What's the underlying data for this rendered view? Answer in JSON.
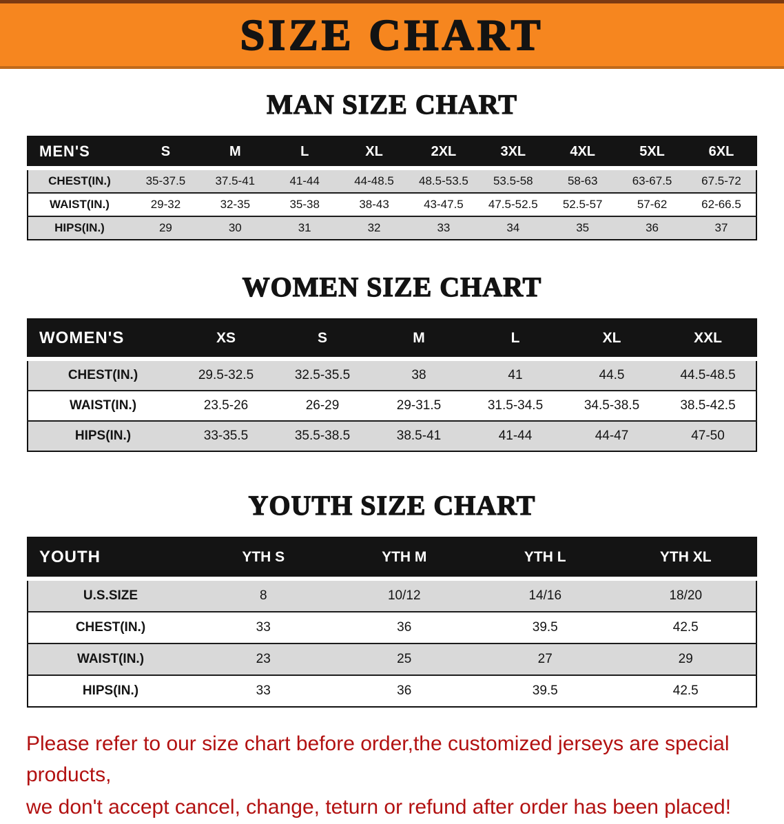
{
  "banner": {
    "title": "SIZE CHART"
  },
  "tables": [
    {
      "name": "men",
      "heading": "MAN SIZE CHART",
      "corner_label": "MEN'S",
      "columns": [
        "S",
        "M",
        "L",
        "XL",
        "2XL",
        "3XL",
        "4XL",
        "5XL",
        "6XL"
      ],
      "rows": [
        {
          "label": "CHEST(IN.)",
          "shaded": true,
          "values": [
            "35-37.5",
            "37.5-41",
            "41-44",
            "44-48.5",
            "48.5-53.5",
            "53.5-58",
            "58-63",
            "63-67.5",
            "67.5-72"
          ]
        },
        {
          "label": "WAIST(IN.)",
          "shaded": false,
          "values": [
            "29-32",
            "32-35",
            "35-38",
            "38-43",
            "43-47.5",
            "47.5-52.5",
            "52.5-57",
            "57-62",
            "62-66.5"
          ]
        },
        {
          "label": "HIPS(IN.)",
          "shaded": true,
          "values": [
            "29",
            "30",
            "31",
            "32",
            "33",
            "34",
            "35",
            "36",
            "37"
          ]
        }
      ]
    },
    {
      "name": "women",
      "heading": "WOMEN SIZE CHART",
      "corner_label": "WOMEN'S",
      "columns": [
        "XS",
        "S",
        "M",
        "L",
        "XL",
        "XXL"
      ],
      "rows": [
        {
          "label": "CHEST(IN.)",
          "shaded": true,
          "values": [
            "29.5-32.5",
            "32.5-35.5",
            "38",
            "41",
            "44.5",
            "44.5-48.5"
          ]
        },
        {
          "label": "WAIST(IN.)",
          "shaded": false,
          "values": [
            "23.5-26",
            "26-29",
            "29-31.5",
            "31.5-34.5",
            "34.5-38.5",
            "38.5-42.5"
          ]
        },
        {
          "label": "HIPS(IN.)",
          "shaded": true,
          "values": [
            "33-35.5",
            "35.5-38.5",
            "38.5-41",
            "41-44",
            "44-47",
            "47-50"
          ]
        }
      ]
    },
    {
      "name": "youth",
      "heading": "YOUTH SIZE CHART",
      "corner_label": "YOUTH",
      "columns": [
        "YTH S",
        "YTH M",
        "YTH L",
        "YTH XL"
      ],
      "rows": [
        {
          "label": "U.S.SIZE",
          "shaded": true,
          "values": [
            "8",
            "10/12",
            "14/16",
            "18/20"
          ]
        },
        {
          "label": "CHEST(IN.)",
          "shaded": false,
          "values": [
            "33",
            "36",
            "39.5",
            "42.5"
          ]
        },
        {
          "label": "WAIST(IN.)",
          "shaded": true,
          "values": [
            "23",
            "25",
            "27",
            "29"
          ]
        },
        {
          "label": "HIPS(IN.)",
          "shaded": false,
          "values": [
            "33",
            "36",
            "39.5",
            "42.5"
          ]
        }
      ]
    }
  ],
  "footer": {
    "lines": [
      "Please refer to our size chart before order,the customized jerseys are special products,",
      "we don't accept cancel, change, teturn or refund after order has been placed!"
    ]
  },
  "colors": {
    "banner_bg": "#f6861f",
    "header_bg": "#141414",
    "shaded_row": "#d9d9d9",
    "footer_text": "#b21111"
  }
}
